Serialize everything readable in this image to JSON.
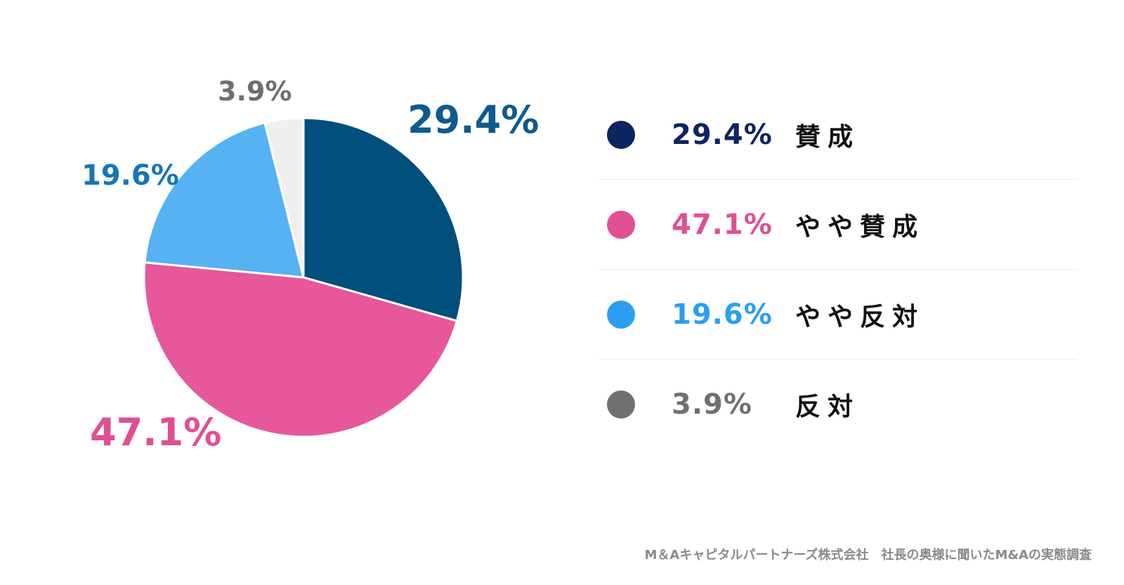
{
  "chart_data": {
    "type": "pie",
    "slices": [
      {
        "label": "賛成",
        "value": 29.4,
        "value_label": "29.4%",
        "legend_value": "29.4%",
        "color": "#004f7c",
        "legend_color": "#0c2461",
        "label_color": "#0e5a8e"
      },
      {
        "label": "やや賛成",
        "value": 47.1,
        "value_label": "47.1%",
        "legend_value": "47.1%",
        "color": "#e6579b",
        "legend_color": "#e04f92",
        "label_color": "#e04f92"
      },
      {
        "label": "やや反対",
        "value": 19.6,
        "value_label": "19.6%",
        "legend_value": "19.6%",
        "color": "#56b2f2",
        "legend_color": "#2b9ef0",
        "label_color": "#1676b8"
      },
      {
        "label": "反対",
        "value": 3.9,
        "value_label": "3.9%",
        "legend_value": "3.9%",
        "color": "#efefef",
        "legend_color": "#707070",
        "label_color": "#6e6e6e"
      }
    ],
    "legend_position": "right",
    "start": "12-o'clock",
    "direction": "clockwise"
  },
  "source": "M＆Aキャピタルパートナーズ株式会社　社長の奥様に聞いたM&Aの実態調査"
}
